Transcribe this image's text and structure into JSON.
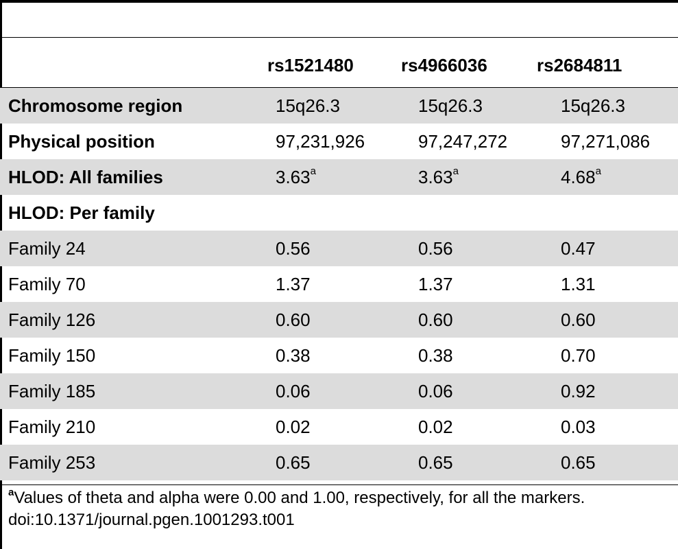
{
  "table": {
    "columns": [
      "rs1521480",
      "rs4966036",
      "rs2684811"
    ],
    "rows": [
      {
        "label": "Chromosome region",
        "bold": true,
        "shade": true,
        "values": [
          "15q26.3",
          "15q26.3",
          "15q26.3"
        ],
        "sup": [
          "",
          "",
          ""
        ]
      },
      {
        "label": "Physical position",
        "bold": true,
        "shade": false,
        "values": [
          "97,231,926",
          "97,247,272",
          "97,271,086"
        ],
        "sup": [
          "",
          "",
          ""
        ]
      },
      {
        "label": "HLOD: All families",
        "bold": true,
        "shade": true,
        "values": [
          "3.63",
          "3.63",
          "4.68"
        ],
        "sup": [
          "a",
          "a",
          "a"
        ]
      },
      {
        "label": "HLOD: Per family",
        "bold": true,
        "shade": false,
        "values": [
          "",
          "",
          ""
        ],
        "sup": [
          "",
          "",
          ""
        ]
      },
      {
        "label": "Family 24",
        "bold": false,
        "shade": true,
        "values": [
          "0.56",
          "0.56",
          "0.47"
        ],
        "sup": [
          "",
          "",
          ""
        ]
      },
      {
        "label": "Family 70",
        "bold": false,
        "shade": false,
        "values": [
          "1.37",
          "1.37",
          "1.31"
        ],
        "sup": [
          "",
          "",
          ""
        ]
      },
      {
        "label": "Family 126",
        "bold": false,
        "shade": true,
        "values": [
          "0.60",
          "0.60",
          "0.60"
        ],
        "sup": [
          "",
          "",
          ""
        ]
      },
      {
        "label": "Family 150",
        "bold": false,
        "shade": false,
        "values": [
          "0.38",
          "0.38",
          "0.70"
        ],
        "sup": [
          "",
          "",
          ""
        ]
      },
      {
        "label": "Family 185",
        "bold": false,
        "shade": true,
        "values": [
          "0.06",
          "0.06",
          "0.92"
        ],
        "sup": [
          "",
          "",
          ""
        ]
      },
      {
        "label": "Family 210",
        "bold": false,
        "shade": false,
        "values": [
          "0.02",
          "0.02",
          "0.03"
        ],
        "sup": [
          "",
          "",
          ""
        ]
      },
      {
        "label": "Family 253",
        "bold": false,
        "shade": true,
        "values": [
          "0.65",
          "0.65",
          "0.65"
        ],
        "sup": [
          "",
          "",
          ""
        ]
      }
    ]
  },
  "footnote": {
    "marker": "a",
    "text": "Values of theta and alpha were 0.00 and 1.00, respectively, for all the markers.",
    "doi": "doi:10.1371/journal.pgen.1001293.t001"
  }
}
